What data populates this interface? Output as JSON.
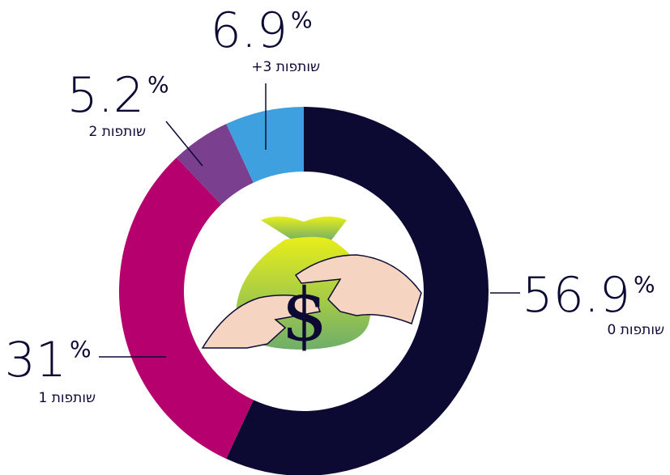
{
  "chart_data": {
    "type": "donut",
    "categories": [
      "0 שותפות",
      "1 שותפות",
      "2 שותפות",
      "+3 שותפות"
    ],
    "values": [
      56.9,
      31,
      5.2,
      6.9
    ],
    "unit": "%",
    "colors": [
      "#0c0a33",
      "#b5006e",
      "#7b3f8f",
      "#3fa0e0"
    ],
    "icon_text": "$"
  }
}
